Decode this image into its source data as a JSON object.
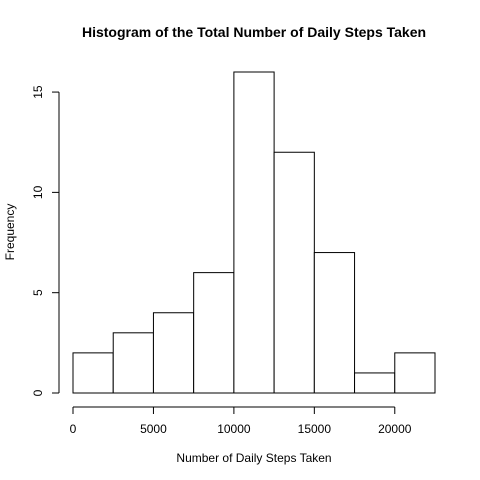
{
  "chart_data": {
    "type": "bar",
    "title": "Histogram of the Total Number of Daily Steps Taken",
    "xlabel": "Number of Daily Steps Taken",
    "ylabel": "Frequency",
    "bins": [
      {
        "start": 0,
        "end": 2500,
        "count": 2
      },
      {
        "start": 2500,
        "end": 5000,
        "count": 3
      },
      {
        "start": 5000,
        "end": 7500,
        "count": 4
      },
      {
        "start": 7500,
        "end": 10000,
        "count": 6
      },
      {
        "start": 10000,
        "end": 12500,
        "count": 16
      },
      {
        "start": 12500,
        "end": 15000,
        "count": 12
      },
      {
        "start": 15000,
        "end": 17500,
        "count": 7
      },
      {
        "start": 17500,
        "end": 20000,
        "count": 1
      },
      {
        "start": 20000,
        "end": 22500,
        "count": 2
      }
    ],
    "x_ticks": [
      0,
      5000,
      10000,
      15000,
      20000
    ],
    "y_ticks": [
      0,
      5,
      10,
      15
    ],
    "xlim": [
      0,
      22500
    ],
    "ylim": [
      0,
      16
    ],
    "grid": false,
    "colors": {
      "bar_fill": "#ffffff",
      "bar_stroke": "#000000"
    }
  }
}
